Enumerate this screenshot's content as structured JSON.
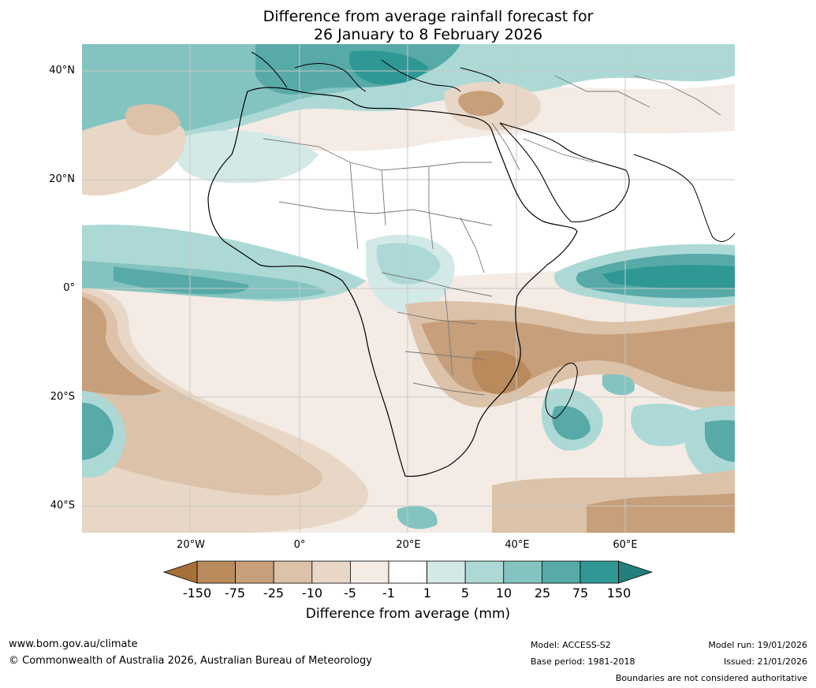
{
  "title": {
    "line1": "Difference from average rainfall forecast for",
    "line2": "26 January to 8 February 2026"
  },
  "map": {
    "region": "Africa and surrounding oceans",
    "lat_labels": [
      "40°N",
      "20°N",
      "0°",
      "20°S",
      "40°S"
    ],
    "lon_labels": [
      "20°W",
      "0°",
      "20°E",
      "40°E",
      "60°E"
    ]
  },
  "colorbar": {
    "label": "Difference from average (mm)",
    "ticks": [
      "-150",
      "-75",
      "-25",
      "-10",
      "-5",
      "-1",
      "1",
      "5",
      "10",
      "25",
      "75",
      "150"
    ],
    "colors": {
      "below_150": "#a6703a",
      "b75": "#b98a5c",
      "b25": "#c79f7a",
      "b10": "#dcc2a8",
      "b5": "#e8d7c6",
      "b1": "#f4ebe5",
      "neutral": "#ffffff",
      "a1": "#d3e9e7",
      "a5": "#acd9d6",
      "a10": "#84c4c0",
      "a25": "#57aaa8",
      "a75": "#2f9895",
      "above_150": "#237f7c"
    }
  },
  "footer": {
    "website": "www.bom.gov.au/climate",
    "copyright": "© Commonwealth of Australia 2026, Australian Bureau of Meteorology",
    "model": "Model: ACCESS-S2",
    "base_period": "Base period: 1981-2018",
    "model_run": "Model run: 19/01/2026",
    "issued": "Issued: 21/01/2026",
    "disclaimer": "Boundaries are not considered authoritative"
  }
}
